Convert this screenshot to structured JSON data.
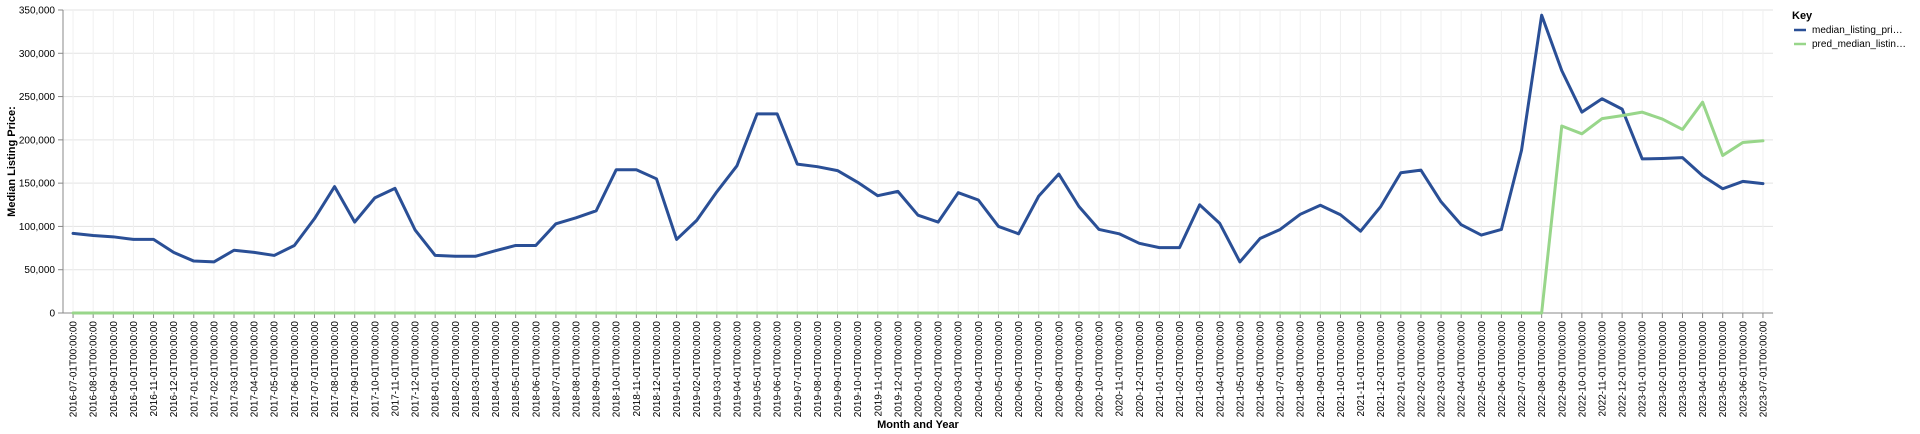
{
  "chart_data": {
    "type": "line",
    "xlabel": "Month and Year",
    "ylabel": "Median Listing Price:",
    "ylim": [
      0,
      350000
    ],
    "yticks": [
      "0",
      "50,000",
      "100,000",
      "150,000",
      "200,000",
      "250,000",
      "300,000",
      "350,000"
    ],
    "grid": true,
    "legend": {
      "title": "Key",
      "placement": "top-right"
    },
    "categories": [
      "2016-07-01T00:00:00",
      "2016-08-01T00:00:00",
      "2016-09-01T00:00:00",
      "2016-10-01T00:00:00",
      "2016-11-01T00:00:00",
      "2016-12-01T00:00:00",
      "2017-01-01T00:00:00",
      "2017-02-01T00:00:00",
      "2017-03-01T00:00:00",
      "2017-04-01T00:00:00",
      "2017-05-01T00:00:00",
      "2017-06-01T00:00:00",
      "2017-07-01T00:00:00",
      "2017-08-01T00:00:00",
      "2017-09-01T00:00:00",
      "2017-10-01T00:00:00",
      "2017-11-01T00:00:00",
      "2017-12-01T00:00:00",
      "2018-01-01T00:00:00",
      "2018-02-01T00:00:00",
      "2018-03-01T00:00:00",
      "2018-04-01T00:00:00",
      "2018-05-01T00:00:00",
      "2018-06-01T00:00:00",
      "2018-07-01T00:00:00",
      "2018-08-01T00:00:00",
      "2018-09-01T00:00:00",
      "2018-10-01T00:00:00",
      "2018-11-01T00:00:00",
      "2018-12-01T00:00:00",
      "2019-01-01T00:00:00",
      "2019-02-01T00:00:00",
      "2019-03-01T00:00:00",
      "2019-04-01T00:00:00",
      "2019-05-01T00:00:00",
      "2019-06-01T00:00:00",
      "2019-07-01T00:00:00",
      "2019-08-01T00:00:00",
      "2019-09-01T00:00:00",
      "2019-10-01T00:00:00",
      "2019-11-01T00:00:00",
      "2019-12-01T00:00:00",
      "2020-01-01T00:00:00",
      "2020-02-01T00:00:00",
      "2020-03-01T00:00:00",
      "2020-04-01T00:00:00",
      "2020-05-01T00:00:00",
      "2020-06-01T00:00:00",
      "2020-07-01T00:00:00",
      "2020-08-01T00:00:00",
      "2020-09-01T00:00:00",
      "2020-10-01T00:00:00",
      "2020-11-01T00:00:00",
      "2020-12-01T00:00:00",
      "2021-01-01T00:00:00",
      "2021-02-01T00:00:00",
      "2021-03-01T00:00:00",
      "2021-04-01T00:00:00",
      "2021-05-01T00:00:00",
      "2021-06-01T00:00:00",
      "2021-07-01T00:00:00",
      "2021-08-01T00:00:00",
      "2021-09-01T00:00:00",
      "2021-10-01T00:00:00",
      "2021-11-01T00:00:00",
      "2021-12-01T00:00:00",
      "2022-01-01T00:00:00",
      "2022-02-01T00:00:00",
      "2022-03-01T00:00:00",
      "2022-04-01T00:00:00",
      "2022-05-01T00:00:00",
      "2022-06-01T00:00:00",
      "2022-07-01T00:00:00",
      "2022-08-01T00:00:00",
      "2022-09-01T00:00:00",
      "2022-10-01T00:00:00",
      "2022-11-01T00:00:00",
      "2022-12-01T00:00:00",
      "2023-01-01T00:00:00",
      "2023-02-01T00:00:00",
      "2023-03-01T00:00:00",
      "2023-04-01T00:00:00",
      "2023-05-01T00:00:00",
      "2023-06-01T00:00:00",
      "2023-07-01T00:00:00"
    ],
    "series": [
      {
        "name": "median_listing_pri…",
        "color": "#2a4f96",
        "values": [
          92000,
          89500,
          88000,
          85000,
          85000,
          70000,
          60000,
          59000,
          72500,
          70000,
          66500,
          78000,
          109000,
          146000,
          105000,
          133000,
          144000,
          96000,
          66500,
          65500,
          65500,
          72000,
          78000,
          78000,
          103000,
          110000,
          118000,
          165500,
          165500,
          155000,
          85000,
          107000,
          140000,
          170000,
          230000,
          230000,
          172000,
          169000,
          164500,
          151000,
          135500,
          140500,
          113000,
          105000,
          139000,
          130500,
          100000,
          91500,
          135000,
          160500,
          123000,
          96500,
          91500,
          80500,
          75500,
          75500,
          125000,
          103500,
          59000,
          86000,
          96500,
          114000,
          124500,
          113500,
          94500,
          123000,
          162000,
          165000,
          128500,
          102000,
          90000,
          96500,
          188000,
          344000,
          280000,
          232000,
          247500,
          235500,
          178000,
          178500,
          179500,
          158500,
          143500,
          152000,
          149500
        ]
      },
      {
        "name": "pred_median_listin…",
        "color": "#98d68a",
        "values": [
          0,
          0,
          0,
          0,
          0,
          0,
          0,
          0,
          0,
          0,
          0,
          0,
          0,
          0,
          0,
          0,
          0,
          0,
          0,
          0,
          0,
          0,
          0,
          0,
          0,
          0,
          0,
          0,
          0,
          0,
          0,
          0,
          0,
          0,
          0,
          0,
          0,
          0,
          0,
          0,
          0,
          0,
          0,
          0,
          0,
          0,
          0,
          0,
          0,
          0,
          0,
          0,
          0,
          0,
          0,
          0,
          0,
          0,
          0,
          0,
          0,
          0,
          0,
          0,
          0,
          0,
          0,
          0,
          0,
          0,
          0,
          0,
          0,
          0,
          216000,
          207000,
          224500,
          228000,
          232000,
          224000,
          212000,
          243500,
          182000,
          197000,
          199000
        ]
      }
    ]
  }
}
